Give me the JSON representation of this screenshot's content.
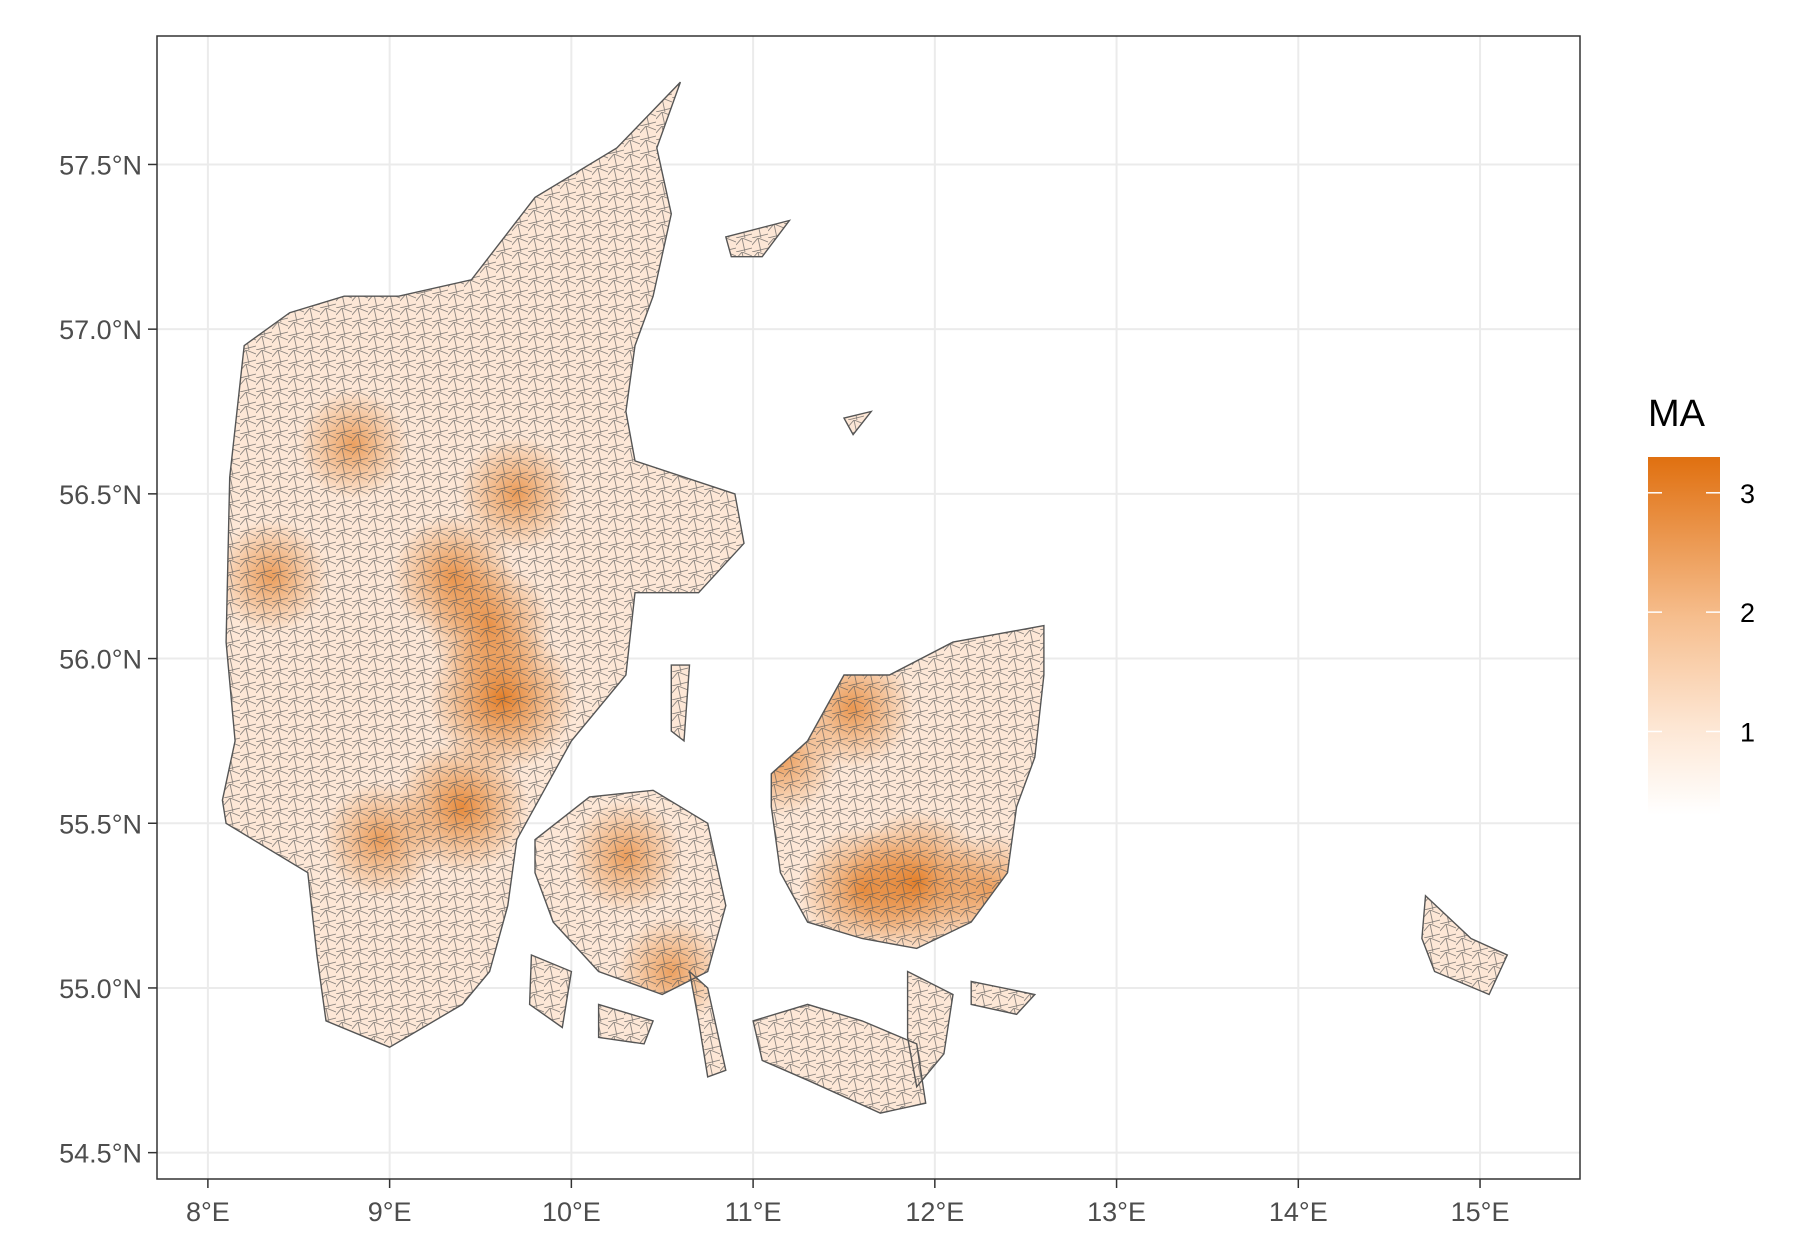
{
  "chart_data": {
    "type": "choropleth map",
    "x_axis": {
      "range": [
        7.72,
        15.55
      ],
      "ticks": [
        8,
        9,
        10,
        11,
        12,
        13,
        14,
        15
      ],
      "tick_labels": [
        "8°E",
        "9°E",
        "10°E",
        "11°E",
        "12°E",
        "13°E",
        "14°E",
        "15°E"
      ]
    },
    "y_axis": {
      "range": [
        54.42,
        57.89
      ],
      "ticks": [
        54.5,
        55.0,
        55.5,
        56.0,
        56.5,
        57.0,
        57.5
      ],
      "tick_labels": [
        "54.5°N",
        "55.0°N",
        "55.5°N",
        "56.0°N",
        "56.5°N",
        "57.0°N",
        "57.5°N"
      ]
    },
    "grid": true,
    "legend": {
      "title": "MA",
      "placement": "right",
      "range": [
        0.3,
        3.3
      ],
      "ticks": [
        1,
        2,
        3
      ],
      "tick_labels": [
        "1",
        "2",
        "3"
      ],
      "color_low": "#ffffff",
      "color_high": "#e07010"
    },
    "polygon_border_color": "#555555",
    "hotspots": [
      {
        "lon": 9.62,
        "lat": 55.88,
        "value": 3.2
      },
      {
        "lon": 11.9,
        "lat": 55.32,
        "value": 3.1
      },
      {
        "lon": 9.4,
        "lat": 55.55,
        "value": 2.7
      },
      {
        "lon": 9.55,
        "lat": 56.1,
        "value": 2.4
      },
      {
        "lon": 9.35,
        "lat": 56.25,
        "value": 2.3
      },
      {
        "lon": 11.6,
        "lat": 55.3,
        "value": 2.4
      },
      {
        "lon": 11.55,
        "lat": 55.85,
        "value": 2.2
      },
      {
        "lon": 10.3,
        "lat": 55.4,
        "value": 1.9
      },
      {
        "lon": 9.7,
        "lat": 56.5,
        "value": 2.0
      },
      {
        "lon": 8.95,
        "lat": 55.45,
        "value": 2.0
      },
      {
        "lon": 12.3,
        "lat": 55.3,
        "value": 1.9
      },
      {
        "lon": 11.15,
        "lat": 55.7,
        "value": 2.0
      },
      {
        "lon": 10.55,
        "lat": 55.05,
        "value": 1.8
      },
      {
        "lon": 8.8,
        "lat": 56.65,
        "value": 1.8
      },
      {
        "lon": 8.35,
        "lat": 56.25,
        "value": 1.9
      }
    ]
  }
}
